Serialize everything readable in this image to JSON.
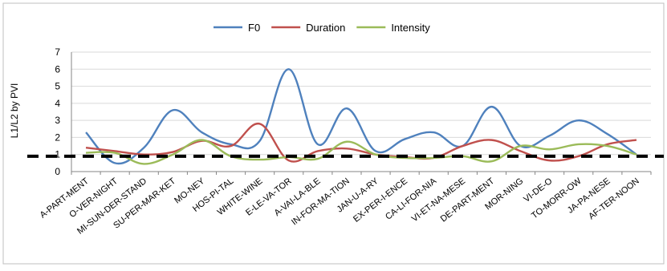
{
  "chart_data": {
    "type": "line",
    "title": "",
    "xlabel": "",
    "ylabel": "L1/L2 by PVI",
    "ylim": [
      0,
      7
    ],
    "yticks": [
      0,
      1,
      2,
      3,
      4,
      5,
      6,
      7
    ],
    "grid": true,
    "legend_position": "top",
    "categories": [
      "A-PART-MENT",
      "O-VER-NIGHT",
      "MI-SUN-DER-STAND",
      "SU-PER-MAR-KET",
      "MO-NEY",
      "HOS-PI-TAL",
      "WHITE-WINE",
      "E-LE-VA-TOR",
      "A-VAI-LA-BLE",
      "IN-FOR-MA-TION",
      "JAN-U-A-RY",
      "EX-PER-I-ENCE",
      "CA-LI-FOR-NIA",
      "VI-ET-NA-MESE",
      "DE-PART-MENT",
      "MOR-NING",
      "VI-DE-O",
      "TO-MORR-OW",
      "JA-PA-NESE",
      "AF-TER-NOON"
    ],
    "series": [
      {
        "name": "F0",
        "color": "#4f81bd",
        "values": [
          2.3,
          0.5,
          1.4,
          3.6,
          2.3,
          1.6,
          1.8,
          6.0,
          1.6,
          3.7,
          1.2,
          1.9,
          2.3,
          1.5,
          3.8,
          1.5,
          2.1,
          3.0,
          2.2,
          1.0
        ]
      },
      {
        "name": "Duration",
        "color": "#c0504d",
        "values": [
          1.4,
          1.2,
          1.0,
          1.15,
          1.8,
          1.5,
          2.8,
          0.65,
          1.2,
          1.35,
          1.0,
          0.85,
          0.8,
          1.5,
          1.85,
          1.2,
          0.65,
          0.9,
          1.6,
          1.85
        ]
      },
      {
        "name": "Intensity",
        "color": "#9bbb59",
        "values": [
          1.1,
          1.1,
          0.45,
          1.0,
          1.85,
          0.9,
          0.7,
          0.85,
          0.75,
          1.75,
          1.0,
          0.8,
          0.8,
          0.9,
          0.6,
          1.5,
          1.3,
          1.6,
          1.5,
          1.0
        ]
      }
    ],
    "reference_line": {
      "value": 0.9,
      "style": "dashed",
      "color": "#000000"
    }
  }
}
